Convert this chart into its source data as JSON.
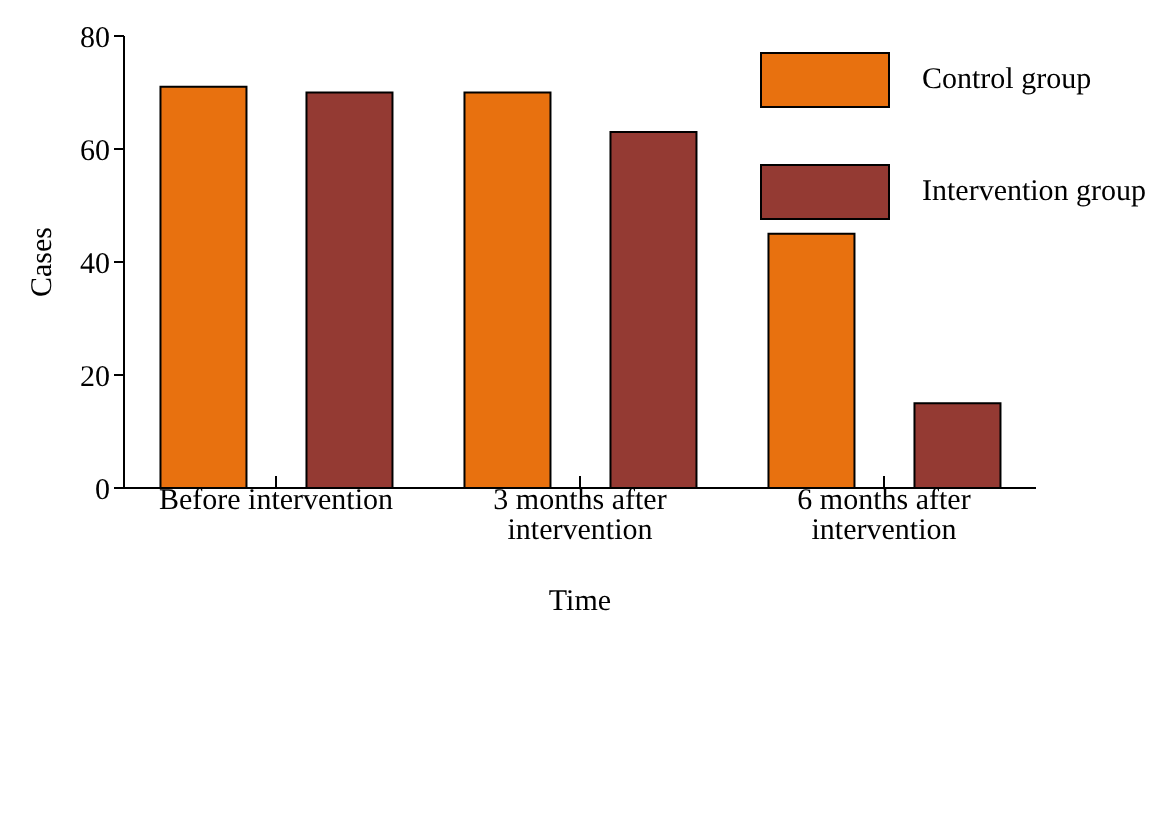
{
  "chart_data": {
    "type": "bar",
    "xlabel": "Time",
    "ylabel": "Cases",
    "categories": [
      "Before intervention",
      "3 months after intervention",
      "6 months after intervention"
    ],
    "series": [
      {
        "name": "Control group",
        "color": "#e8710f",
        "values": [
          71,
          70,
          45
        ]
      },
      {
        "name": "Intervention group",
        "color": "#943a33",
        "values": [
          70,
          63,
          15
        ]
      }
    ],
    "ylim": [
      0,
      80
    ],
    "yticks": [
      0,
      20,
      40,
      60,
      80
    ],
    "grid": false,
    "legend": "top right"
  }
}
